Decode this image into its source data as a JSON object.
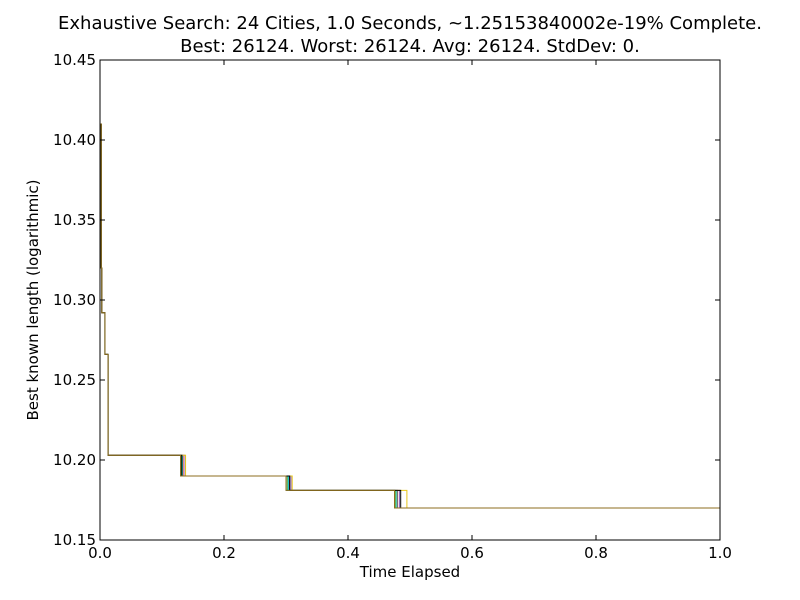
{
  "chart_data": {
    "type": "line",
    "title": "Exhaustive Search: 24 Cities, 1.0 Seconds, ~1.25153840002e-19% Complete.",
    "subtitle": "Best: 26124. Worst: 26124. Avg: 26124. StdDev: 0.",
    "xlabel": "Time Elapsed",
    "ylabel": "Best known length (logarithmic)",
    "xlim": [
      0.0,
      1.0
    ],
    "ylim": [
      10.15,
      10.45
    ],
    "x_ticks": [
      "0.0",
      "0.2",
      "0.4",
      "0.6",
      "0.8",
      "1.0"
    ],
    "y_ticks": [
      "10.15",
      "10.20",
      "10.25",
      "10.30",
      "10.35",
      "10.40",
      "10.45"
    ],
    "grid": false,
    "legend": "none",
    "series": [
      {
        "color": "#1f77b4",
        "x": [
          0.0,
          0.002,
          0.003,
          0.008,
          0.013,
          0.13,
          0.3,
          0.475,
          1.0
        ],
        "y": [
          10.41,
          10.32,
          10.292,
          10.266,
          10.203,
          10.19,
          10.181,
          10.17,
          10.17
        ]
      },
      {
        "color": "#2ca02c",
        "x": [
          0.0,
          0.002,
          0.003,
          0.008,
          0.013,
          0.131,
          0.302,
          0.477,
          1.0
        ],
        "y": [
          10.41,
          10.32,
          10.292,
          10.266,
          10.203,
          10.19,
          10.181,
          10.17,
          10.17
        ]
      },
      {
        "color": "#d62728",
        "x": [
          0.0,
          0.002,
          0.003,
          0.008,
          0.013,
          0.134,
          0.305,
          0.48,
          1.0
        ],
        "y": [
          10.41,
          10.32,
          10.292,
          10.266,
          10.203,
          10.19,
          10.181,
          10.17,
          10.17
        ]
      },
      {
        "color": "#17becf",
        "x": [
          0.0,
          0.002,
          0.003,
          0.008,
          0.013,
          0.133,
          0.304,
          0.479,
          1.0
        ],
        "y": [
          10.41,
          10.32,
          10.292,
          10.266,
          10.203,
          10.19,
          10.181,
          10.17,
          10.17
        ]
      },
      {
        "color": "#9467bd",
        "x": [
          0.0,
          0.002,
          0.003,
          0.008,
          0.013,
          0.137,
          0.308,
          0.483,
          1.0
        ],
        "y": [
          10.41,
          10.32,
          10.292,
          10.266,
          10.203,
          10.19,
          10.181,
          10.17,
          10.17
        ]
      },
      {
        "color": "#e6c619",
        "x": [
          0.0,
          0.002,
          0.003,
          0.008,
          0.013,
          0.138,
          0.31,
          0.495,
          1.0
        ],
        "y": [
          10.41,
          10.32,
          10.292,
          10.266,
          10.203,
          10.19,
          10.181,
          10.17,
          10.17
        ]
      },
      {
        "color": "#000000",
        "x": [
          0.0,
          0.002,
          0.003,
          0.008,
          0.013,
          0.132,
          0.306,
          0.485,
          1.0
        ],
        "y": [
          10.41,
          10.32,
          10.292,
          10.266,
          10.203,
          10.19,
          10.181,
          10.17,
          10.17
        ]
      },
      {
        "color": "#8c6d1f",
        "x": [
          0.0,
          0.002,
          0.003,
          0.008,
          0.013,
          0.13,
          0.3,
          0.475,
          1.0
        ],
        "y": [
          10.41,
          10.32,
          10.292,
          10.266,
          10.203,
          10.19,
          10.181,
          10.17,
          10.17
        ]
      }
    ]
  }
}
